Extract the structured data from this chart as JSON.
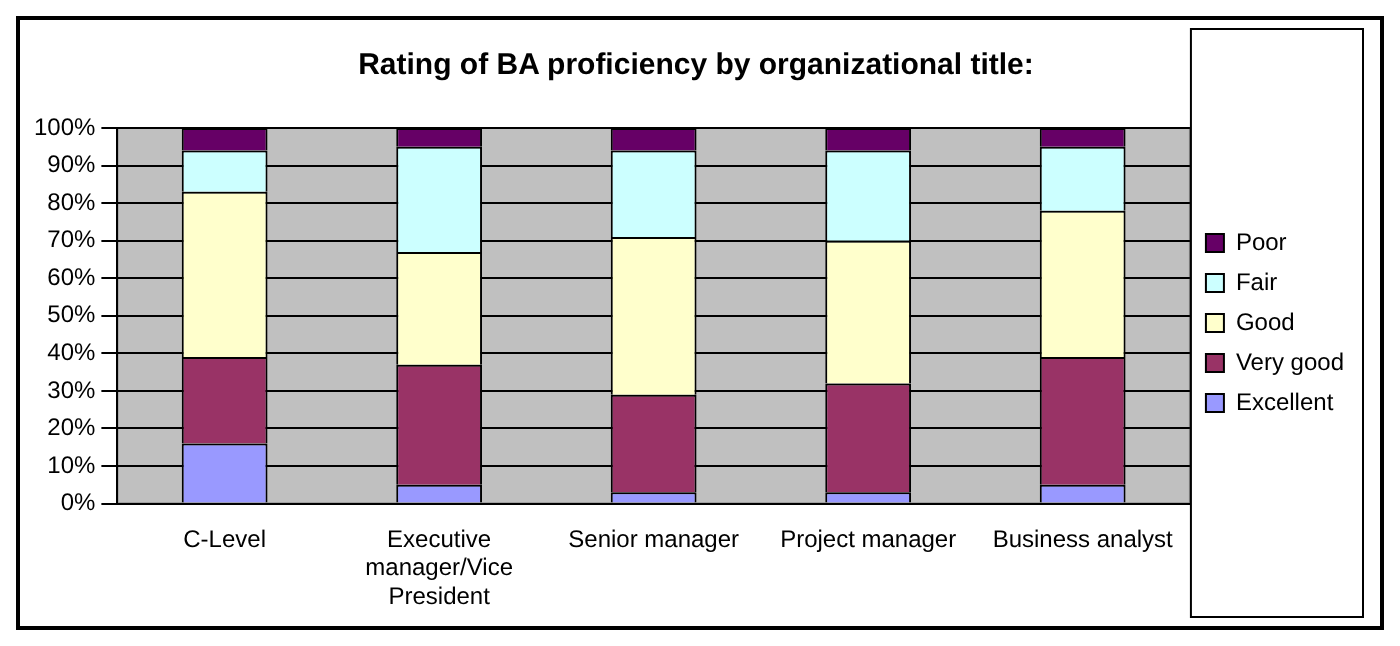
{
  "chart_data": {
    "type": "bar",
    "title": "Rating of BA proficiency by organizational title:",
    "stacked": true,
    "categories": [
      "C-Level",
      "Executive manager/Vice President",
      "Senior manager",
      "Project manager",
      "Business analyst"
    ],
    "series": [
      {
        "name": "Excellent",
        "color": "#9999ff",
        "values": [
          16,
          5,
          3,
          3,
          5
        ]
      },
      {
        "name": "Very good",
        "color": "#993366",
        "values": [
          23,
          32,
          26,
          29,
          34
        ]
      },
      {
        "name": "Good",
        "color": "#ffffcc",
        "values": [
          44,
          30,
          42,
          38,
          39
        ]
      },
      {
        "name": "Fair",
        "color": "#ccffff",
        "values": [
          11,
          28,
          23,
          24,
          17
        ]
      },
      {
        "name": "Poor",
        "color": "#660066",
        "values": [
          6,
          5,
          6,
          6,
          5
        ]
      }
    ],
    "ylim": [
      0,
      100
    ],
    "yticks": [
      {
        "value": 0,
        "label": "0%"
      },
      {
        "value": 10,
        "label": "10%"
      },
      {
        "value": 20,
        "label": "20%"
      },
      {
        "value": 30,
        "label": "30%"
      },
      {
        "value": 40,
        "label": "40%"
      },
      {
        "value": 50,
        "label": "50%"
      },
      {
        "value": 60,
        "label": "60%"
      },
      {
        "value": 70,
        "label": "70%"
      },
      {
        "value": 80,
        "label": "80%"
      },
      {
        "value": 90,
        "label": "90%"
      },
      {
        "value": 100,
        "label": "100%"
      }
    ],
    "grid": "y",
    "legend": "right"
  }
}
